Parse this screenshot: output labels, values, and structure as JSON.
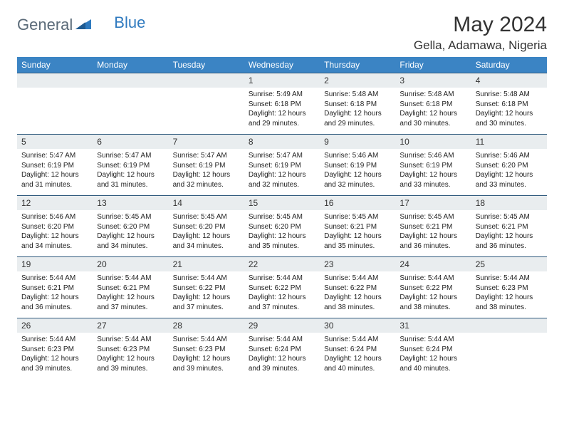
{
  "logo": {
    "part1": "General",
    "part2": "Blue"
  },
  "title": "May 2024",
  "location": "Gella, Adamawa, Nigeria",
  "colors": {
    "header_bg": "#3b84c4",
    "header_text": "#ffffff",
    "daynum_bg": "#e9edef",
    "row_border": "#2f5a7d",
    "title_color": "#333333",
    "body_text": "#222222",
    "logo_gray": "#5a6a78",
    "logo_blue": "#2f7abf",
    "background": "#ffffff"
  },
  "typography": {
    "title_fontsize": 30,
    "location_fontsize": 17,
    "dayhead_fontsize": 12,
    "daynum_fontsize": 12,
    "cell_fontsize": 10,
    "logo_fontsize": 22
  },
  "day_headers": [
    "Sunday",
    "Monday",
    "Tuesday",
    "Wednesday",
    "Thursday",
    "Friday",
    "Saturday"
  ],
  "weeks": [
    [
      null,
      null,
      null,
      {
        "num": "1",
        "sunrise": "Sunrise: 5:49 AM",
        "sunset": "Sunset: 6:18 PM",
        "daylight1": "Daylight: 12 hours",
        "daylight2": "and 29 minutes."
      },
      {
        "num": "2",
        "sunrise": "Sunrise: 5:48 AM",
        "sunset": "Sunset: 6:18 PM",
        "daylight1": "Daylight: 12 hours",
        "daylight2": "and 29 minutes."
      },
      {
        "num": "3",
        "sunrise": "Sunrise: 5:48 AM",
        "sunset": "Sunset: 6:18 PM",
        "daylight1": "Daylight: 12 hours",
        "daylight2": "and 30 minutes."
      },
      {
        "num": "4",
        "sunrise": "Sunrise: 5:48 AM",
        "sunset": "Sunset: 6:18 PM",
        "daylight1": "Daylight: 12 hours",
        "daylight2": "and 30 minutes."
      }
    ],
    [
      {
        "num": "5",
        "sunrise": "Sunrise: 5:47 AM",
        "sunset": "Sunset: 6:19 PM",
        "daylight1": "Daylight: 12 hours",
        "daylight2": "and 31 minutes."
      },
      {
        "num": "6",
        "sunrise": "Sunrise: 5:47 AM",
        "sunset": "Sunset: 6:19 PM",
        "daylight1": "Daylight: 12 hours",
        "daylight2": "and 31 minutes."
      },
      {
        "num": "7",
        "sunrise": "Sunrise: 5:47 AM",
        "sunset": "Sunset: 6:19 PM",
        "daylight1": "Daylight: 12 hours",
        "daylight2": "and 32 minutes."
      },
      {
        "num": "8",
        "sunrise": "Sunrise: 5:47 AM",
        "sunset": "Sunset: 6:19 PM",
        "daylight1": "Daylight: 12 hours",
        "daylight2": "and 32 minutes."
      },
      {
        "num": "9",
        "sunrise": "Sunrise: 5:46 AM",
        "sunset": "Sunset: 6:19 PM",
        "daylight1": "Daylight: 12 hours",
        "daylight2": "and 32 minutes."
      },
      {
        "num": "10",
        "sunrise": "Sunrise: 5:46 AM",
        "sunset": "Sunset: 6:19 PM",
        "daylight1": "Daylight: 12 hours",
        "daylight2": "and 33 minutes."
      },
      {
        "num": "11",
        "sunrise": "Sunrise: 5:46 AM",
        "sunset": "Sunset: 6:20 PM",
        "daylight1": "Daylight: 12 hours",
        "daylight2": "and 33 minutes."
      }
    ],
    [
      {
        "num": "12",
        "sunrise": "Sunrise: 5:46 AM",
        "sunset": "Sunset: 6:20 PM",
        "daylight1": "Daylight: 12 hours",
        "daylight2": "and 34 minutes."
      },
      {
        "num": "13",
        "sunrise": "Sunrise: 5:45 AM",
        "sunset": "Sunset: 6:20 PM",
        "daylight1": "Daylight: 12 hours",
        "daylight2": "and 34 minutes."
      },
      {
        "num": "14",
        "sunrise": "Sunrise: 5:45 AM",
        "sunset": "Sunset: 6:20 PM",
        "daylight1": "Daylight: 12 hours",
        "daylight2": "and 34 minutes."
      },
      {
        "num": "15",
        "sunrise": "Sunrise: 5:45 AM",
        "sunset": "Sunset: 6:20 PM",
        "daylight1": "Daylight: 12 hours",
        "daylight2": "and 35 minutes."
      },
      {
        "num": "16",
        "sunrise": "Sunrise: 5:45 AM",
        "sunset": "Sunset: 6:21 PM",
        "daylight1": "Daylight: 12 hours",
        "daylight2": "and 35 minutes."
      },
      {
        "num": "17",
        "sunrise": "Sunrise: 5:45 AM",
        "sunset": "Sunset: 6:21 PM",
        "daylight1": "Daylight: 12 hours",
        "daylight2": "and 36 minutes."
      },
      {
        "num": "18",
        "sunrise": "Sunrise: 5:45 AM",
        "sunset": "Sunset: 6:21 PM",
        "daylight1": "Daylight: 12 hours",
        "daylight2": "and 36 minutes."
      }
    ],
    [
      {
        "num": "19",
        "sunrise": "Sunrise: 5:44 AM",
        "sunset": "Sunset: 6:21 PM",
        "daylight1": "Daylight: 12 hours",
        "daylight2": "and 36 minutes."
      },
      {
        "num": "20",
        "sunrise": "Sunrise: 5:44 AM",
        "sunset": "Sunset: 6:21 PM",
        "daylight1": "Daylight: 12 hours",
        "daylight2": "and 37 minutes."
      },
      {
        "num": "21",
        "sunrise": "Sunrise: 5:44 AM",
        "sunset": "Sunset: 6:22 PM",
        "daylight1": "Daylight: 12 hours",
        "daylight2": "and 37 minutes."
      },
      {
        "num": "22",
        "sunrise": "Sunrise: 5:44 AM",
        "sunset": "Sunset: 6:22 PM",
        "daylight1": "Daylight: 12 hours",
        "daylight2": "and 37 minutes."
      },
      {
        "num": "23",
        "sunrise": "Sunrise: 5:44 AM",
        "sunset": "Sunset: 6:22 PM",
        "daylight1": "Daylight: 12 hours",
        "daylight2": "and 38 minutes."
      },
      {
        "num": "24",
        "sunrise": "Sunrise: 5:44 AM",
        "sunset": "Sunset: 6:22 PM",
        "daylight1": "Daylight: 12 hours",
        "daylight2": "and 38 minutes."
      },
      {
        "num": "25",
        "sunrise": "Sunrise: 5:44 AM",
        "sunset": "Sunset: 6:23 PM",
        "daylight1": "Daylight: 12 hours",
        "daylight2": "and 38 minutes."
      }
    ],
    [
      {
        "num": "26",
        "sunrise": "Sunrise: 5:44 AM",
        "sunset": "Sunset: 6:23 PM",
        "daylight1": "Daylight: 12 hours",
        "daylight2": "and 39 minutes."
      },
      {
        "num": "27",
        "sunrise": "Sunrise: 5:44 AM",
        "sunset": "Sunset: 6:23 PM",
        "daylight1": "Daylight: 12 hours",
        "daylight2": "and 39 minutes."
      },
      {
        "num": "28",
        "sunrise": "Sunrise: 5:44 AM",
        "sunset": "Sunset: 6:23 PM",
        "daylight1": "Daylight: 12 hours",
        "daylight2": "and 39 minutes."
      },
      {
        "num": "29",
        "sunrise": "Sunrise: 5:44 AM",
        "sunset": "Sunset: 6:24 PM",
        "daylight1": "Daylight: 12 hours",
        "daylight2": "and 39 minutes."
      },
      {
        "num": "30",
        "sunrise": "Sunrise: 5:44 AM",
        "sunset": "Sunset: 6:24 PM",
        "daylight1": "Daylight: 12 hours",
        "daylight2": "and 40 minutes."
      },
      {
        "num": "31",
        "sunrise": "Sunrise: 5:44 AM",
        "sunset": "Sunset: 6:24 PM",
        "daylight1": "Daylight: 12 hours",
        "daylight2": "and 40 minutes."
      },
      null
    ]
  ]
}
